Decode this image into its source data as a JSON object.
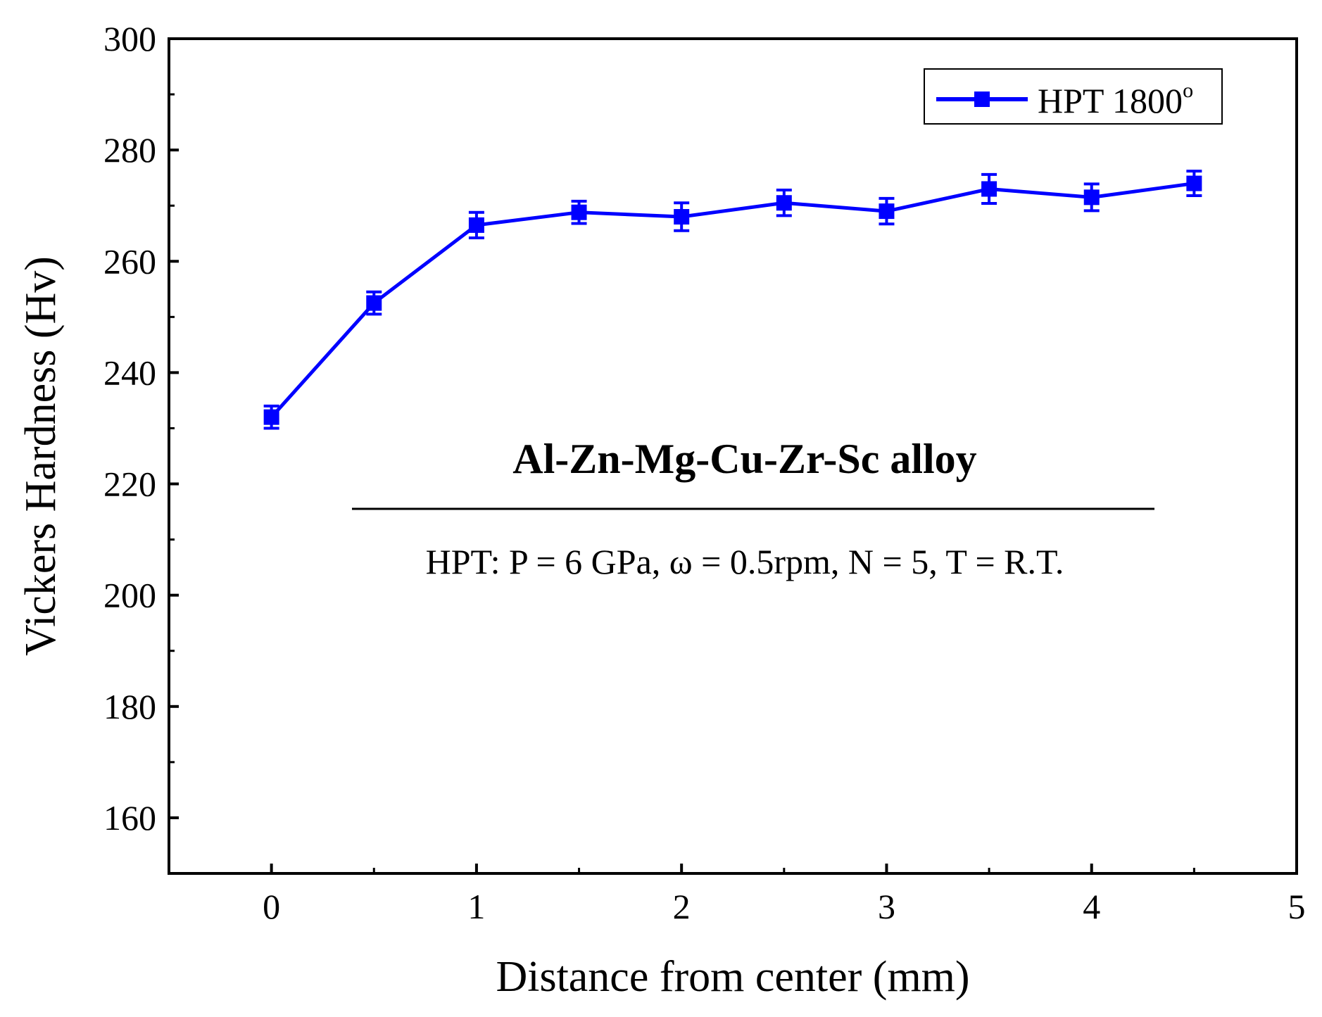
{
  "chart_data": {
    "type": "line",
    "title": "",
    "xlabel": "Distance from center (mm)",
    "ylabel": "Vickers Hardness (Hv)",
    "xlim": [
      -0.5,
      5
    ],
    "ylim": [
      150,
      300
    ],
    "x_ticks": [
      0,
      1,
      2,
      3,
      4,
      5
    ],
    "y_ticks": [
      160,
      180,
      200,
      220,
      240,
      260,
      280,
      300
    ],
    "grid": false,
    "legend_position": "top-right",
    "series": [
      {
        "name": "HPT 1800",
        "name_superscript": "o",
        "color": "#0000ff",
        "marker": "square",
        "x": [
          0,
          0.5,
          1,
          1.5,
          2,
          2.5,
          3,
          3.5,
          4,
          4.5
        ],
        "y": [
          232,
          252.5,
          266.5,
          268.8,
          268,
          270.5,
          269,
          273,
          271.5,
          274
        ],
        "error": [
          2,
          2,
          2.3,
          2,
          2.5,
          2.3,
          2.3,
          2.6,
          2.4,
          2.2
        ]
      }
    ],
    "annotations": {
      "title": "Al-Zn-Mg-Cu-Zr-Sc alloy",
      "subtitle": "HPT: P = 6 GPa, ω = 0.5rpm, N = 5, T = R.T."
    }
  }
}
